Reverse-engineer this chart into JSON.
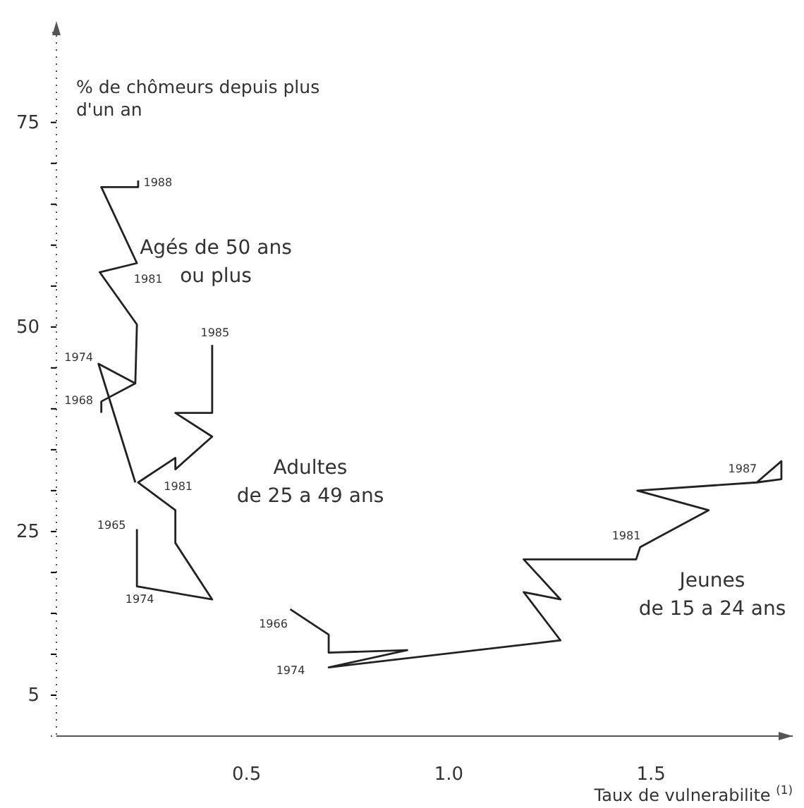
{
  "chart_data": {
    "type": "line",
    "ylabel": "% de chômeurs depuis plus d'un an",
    "xlabel": "Taux de vulnerabilite $^{(1)}$",
    "xlim": [
      0.03,
      1.85
    ],
    "ylim": [
      0,
      86
    ],
    "xticks": [
      0.5,
      {
        "value": 1,
        "label": "1.0"
      },
      1.5
    ],
    "yticks": [
      5,
      {
        "value": 10,
        "label": null
      },
      {
        "value": 15,
        "label": null
      },
      {
        "value": 20,
        "label": null
      },
      25,
      {
        "value": 30,
        "label": null
      },
      {
        "value": 35,
        "label": null
      },
      {
        "value": 40,
        "label": null
      },
      {
        "value": 45,
        "label": null
      },
      50,
      {
        "value": 55,
        "label": null
      },
      {
        "value": 60,
        "label": null
      },
      {
        "value": 65,
        "label": null
      },
      {
        "value": 70,
        "label": null
      },
      75
    ],
    "grid": false,
    "legend": false,
    "marker": "none",
    "line_style": "solid",
    "series": [
      {
        "name": "Agés de 50 ans\nou plus",
        "color": "#222222",
        "x": [
          0.225,
          0.134,
          0.225,
          0.141,
          0.141,
          null,
          0.225,
          0.229,
          0.137,
          0.229,
          0.141,
          0.232,
          0.232
        ],
        "values": [
          31.0,
          45.5,
          43.1,
          40.9,
          39.5,
          null,
          43.1,
          50.3,
          56.7,
          57.8,
          67.1,
          67.1,
          67.9
        ]
      },
      {
        "name": "Adultes\nde 25 a 49 ans",
        "color": "#222222",
        "x": [
          0.229,
          0.229,
          0.415,
          0.324,
          0.324,
          0.232,
          0.324,
          0.324,
          0.415,
          0.324,
          0.415,
          0.415
        ],
        "values": [
          25.3,
          18.3,
          16.7,
          23.6,
          27.6,
          31.0,
          34.0,
          32.6,
          36.6,
          39.5,
          39.5,
          47.8
        ]
      },
      {
        "name": "Jeunes\nde 15 a 24 ans",
        "color": "#222222",
        "x": [
          0.608,
          0.703,
          0.703,
          0.897,
          0.703,
          1.276,
          1.185,
          1.276,
          1.185,
          1.463,
          1.473,
          1.642,
          1.466,
          1.761,
          1.822,
          1.822,
          1.761
        ],
        "values": [
          15.5,
          12.4,
          10.2,
          10.5,
          8.4,
          11.7,
          17.6,
          16.7,
          21.6,
          21.6,
          23.1,
          27.6,
          30.0,
          31.0,
          33.6,
          31.4,
          31.0
        ]
      }
    ],
    "annotations": [
      {
        "text": "1988",
        "x": 0.232,
        "y": 67.9
      },
      {
        "text": "1981",
        "x": 0.229,
        "y": 57.8
      },
      {
        "text": "1974",
        "x": 0.134,
        "y": 45.5
      },
      {
        "text": "1968",
        "x": 0.141,
        "y": 40.9
      },
      {
        "text": "1985",
        "x": 0.415,
        "y": 47.8
      },
      {
        "text": "1981",
        "x": 0.324,
        "y": 32.6
      },
      {
        "text": "1965",
        "x": 0.229,
        "y": 25.3
      },
      {
        "text": "1974",
        "x": 0.229,
        "y": 18.3
      },
      {
        "text": "1966",
        "x": 0.608,
        "y": 15.5
      },
      {
        "text": "1974",
        "x": 0.703,
        "y": 8.4
      },
      {
        "text": "1981",
        "x": 1.463,
        "y": 21.6
      },
      {
        "text": "1987",
        "x": 1.761,
        "y": 31.0
      }
    ]
  }
}
